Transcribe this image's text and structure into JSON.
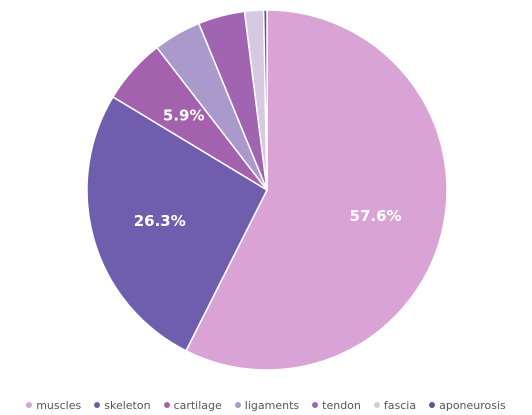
{
  "chart_data": {
    "type": "pie",
    "title": "",
    "start_angle_deg": 0,
    "direction": "clockwise",
    "slices": [
      {
        "label": "muscles",
        "value": 57.6,
        "display": "57.6%",
        "color": "#d9a3d6",
        "show_label": true
      },
      {
        "label": "skeleton",
        "value": 26.3,
        "display": "26.3%",
        "color": "#6f5eae",
        "show_label": true
      },
      {
        "label": "cartilage",
        "value": 5.9,
        "display": "5.9%",
        "color": "#a462ae",
        "show_label": true
      },
      {
        "label": "ligaments",
        "value": 4.3,
        "display": "4.3%",
        "color": "#a99acb",
        "show_label": false
      },
      {
        "label": "tendon",
        "value": 4.2,
        "display": "4.2%",
        "color": "#a064b0",
        "show_label": false
      },
      {
        "label": "fascia",
        "value": 1.7,
        "display": "1.7%",
        "color": "#d8c9e2",
        "show_label": false
      },
      {
        "label": "aponeurosis",
        "value": 0.3,
        "display": "0.3%",
        "color": "#5b52a0",
        "show_label": false
      }
    ],
    "legend_position": "bottom"
  }
}
